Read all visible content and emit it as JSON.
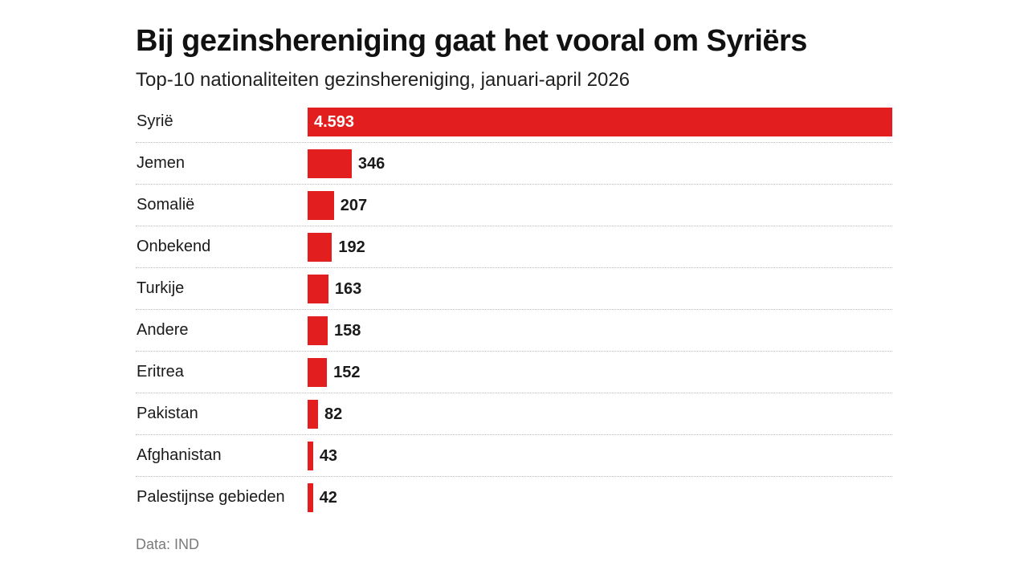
{
  "title": "Bij gezinshereniging gaat het vooral om Syriërs",
  "subtitle": "Top-10 nationaliteiten gezinshereniging, januari-april 2026",
  "source": "Data: IND",
  "colors": {
    "bar": "#e31e1e",
    "text": "#1a1a1a",
    "muted": "#7a7a7a"
  },
  "chart_data": {
    "type": "bar",
    "orientation": "horizontal",
    "title": "Bij gezinshereniging gaat het vooral om Syriërs",
    "subtitle": "Top-10 nationaliteiten gezinshereniging, januari-april 2026",
    "xlabel": "",
    "ylabel": "",
    "grid": false,
    "xlim": [
      0,
      4593
    ],
    "categories": [
      "Syrië",
      "Jemen",
      "Somalië",
      "Onbekend",
      "Turkije",
      "Andere",
      "Eritrea",
      "Pakistan",
      "Afghanistan",
      "Palestijnse gebieden"
    ],
    "values": [
      4593,
      346,
      207,
      192,
      163,
      158,
      152,
      82,
      43,
      42
    ],
    "value_labels": [
      "4.593",
      "346",
      "207",
      "192",
      "163",
      "158",
      "152",
      "82",
      "43",
      "42"
    ]
  }
}
